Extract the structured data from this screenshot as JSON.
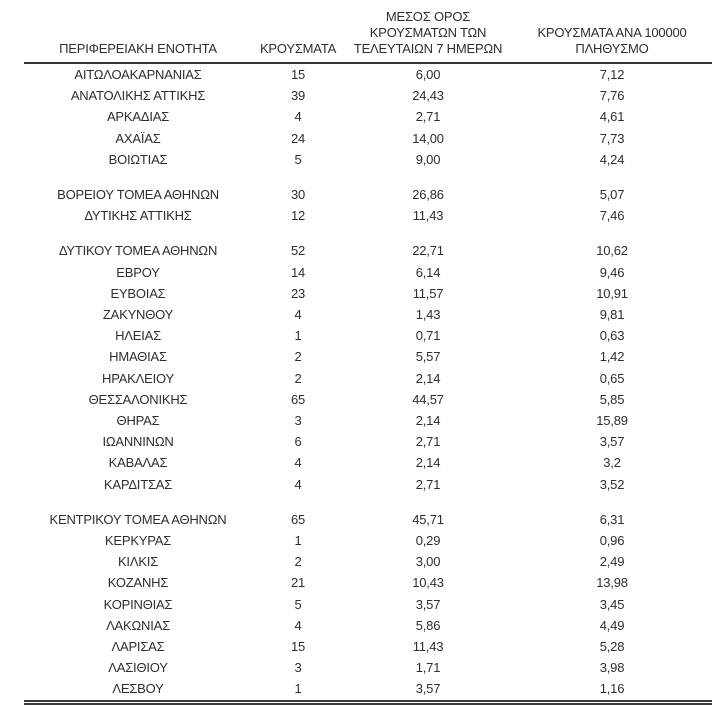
{
  "table": {
    "columns": [
      {
        "id": "region",
        "label": "ΠΕΡΙΦΕΡΕΙΑΚΗ ΕΝΟΤΗΤΑ"
      },
      {
        "id": "cases",
        "label": "ΚΡΟΥΣΜΑΤΑ"
      },
      {
        "id": "avg7",
        "label": "ΜΕΣΟΣ ΟΡΟΣ\nΚΡΟΥΣΜΑΤΩΝ ΤΩΝ\nΤΕΛΕΥΤΑΙΩΝ 7 ΗΜΕΡΩΝ"
      },
      {
        "id": "per100k",
        "label": "ΚΡΟΥΣΜΑΤΑ ΑΝΑ 100000\nΠΛΗΘΥΣΜΟ"
      }
    ],
    "groups": [
      {
        "rows": [
          [
            "ΑΙΤΩΛΟΑΚΑΡΝΑΝΙΑΣ",
            "15",
            "6,00",
            "7,12"
          ],
          [
            "ΑΝΑΤΟΛΙΚΗΣ ΑΤΤΙΚΗΣ",
            "39",
            "24,43",
            "7,76"
          ],
          [
            "ΑΡΚΑΔΙΑΣ",
            "4",
            "2,71",
            "4,61"
          ],
          [
            "ΑΧΑΪΑΣ",
            "24",
            "14,00",
            "7,73"
          ],
          [
            "ΒΟΙΩΤΙΑΣ",
            "5",
            "9,00",
            "4,24"
          ]
        ]
      },
      {
        "rows": [
          [
            "ΒΟΡΕΙΟΥ ΤΟΜΕΑ ΑΘΗΝΩΝ",
            "30",
            "26,86",
            "5,07"
          ],
          [
            "ΔΥΤΙΚΗΣ ΑΤΤΙΚΗΣ",
            "12",
            "11,43",
            "7,46"
          ]
        ]
      },
      {
        "rows": [
          [
            "ΔΥΤΙΚΟΥ ΤΟΜΕΑ ΑΘΗΝΩΝ",
            "52",
            "22,71",
            "10,62"
          ],
          [
            "ΕΒΡΟΥ",
            "14",
            "6,14",
            "9,46"
          ],
          [
            "ΕΥΒΟΙΑΣ",
            "23",
            "11,57",
            "10,91"
          ],
          [
            "ΖΑΚΥΝΘΟΥ",
            "4",
            "1,43",
            "9,81"
          ],
          [
            "ΗΛΕΙΑΣ",
            "1",
            "0,71",
            "0,63"
          ],
          [
            "ΗΜΑΘΙΑΣ",
            "2",
            "5,57",
            "1,42"
          ],
          [
            "ΗΡΑΚΛΕΙΟΥ",
            "2",
            "2,14",
            "0,65"
          ],
          [
            "ΘΕΣΣΑΛΟΝΙΚΗΣ",
            "65",
            "44,57",
            "5,85"
          ],
          [
            "ΘΗΡΑΣ",
            "3",
            "2,14",
            "15,89"
          ],
          [
            "ΙΩΑΝΝΙΝΩΝ",
            "6",
            "2,71",
            "3,57"
          ],
          [
            "ΚΑΒΑΛΑΣ",
            "4",
            "2,14",
            "3,2"
          ],
          [
            "ΚΑΡΔΙΤΣΑΣ",
            "4",
            "2,71",
            "3,52"
          ]
        ]
      },
      {
        "rows": [
          [
            "ΚΕΝΤΡΙΚΟΥ ΤΟΜΕΑ ΑΘΗΝΩΝ",
            "65",
            "45,71",
            "6,31"
          ],
          [
            "ΚΕΡΚΥΡΑΣ",
            "1",
            "0,29",
            "0,96"
          ],
          [
            "ΚΙΛΚΙΣ",
            "2",
            "3,00",
            "2,49"
          ],
          [
            "ΚΟΖΑΝΗΣ",
            "21",
            "10,43",
            "13,98"
          ],
          [
            "ΚΟΡΙΝΘΙΑΣ",
            "5",
            "3,57",
            "3,45"
          ],
          [
            "ΛΑΚΩΝΙΑΣ",
            "4",
            "5,86",
            "4,49"
          ],
          [
            "ΛΑΡΙΣΑΣ",
            "15",
            "11,43",
            "5,28"
          ],
          [
            "ΛΑΣΙΘΙΟΥ",
            "3",
            "1,71",
            "3,98"
          ],
          [
            "ΛΕΣΒΟΥ",
            "1",
            "3,57",
            "1,16"
          ]
        ]
      }
    ]
  }
}
